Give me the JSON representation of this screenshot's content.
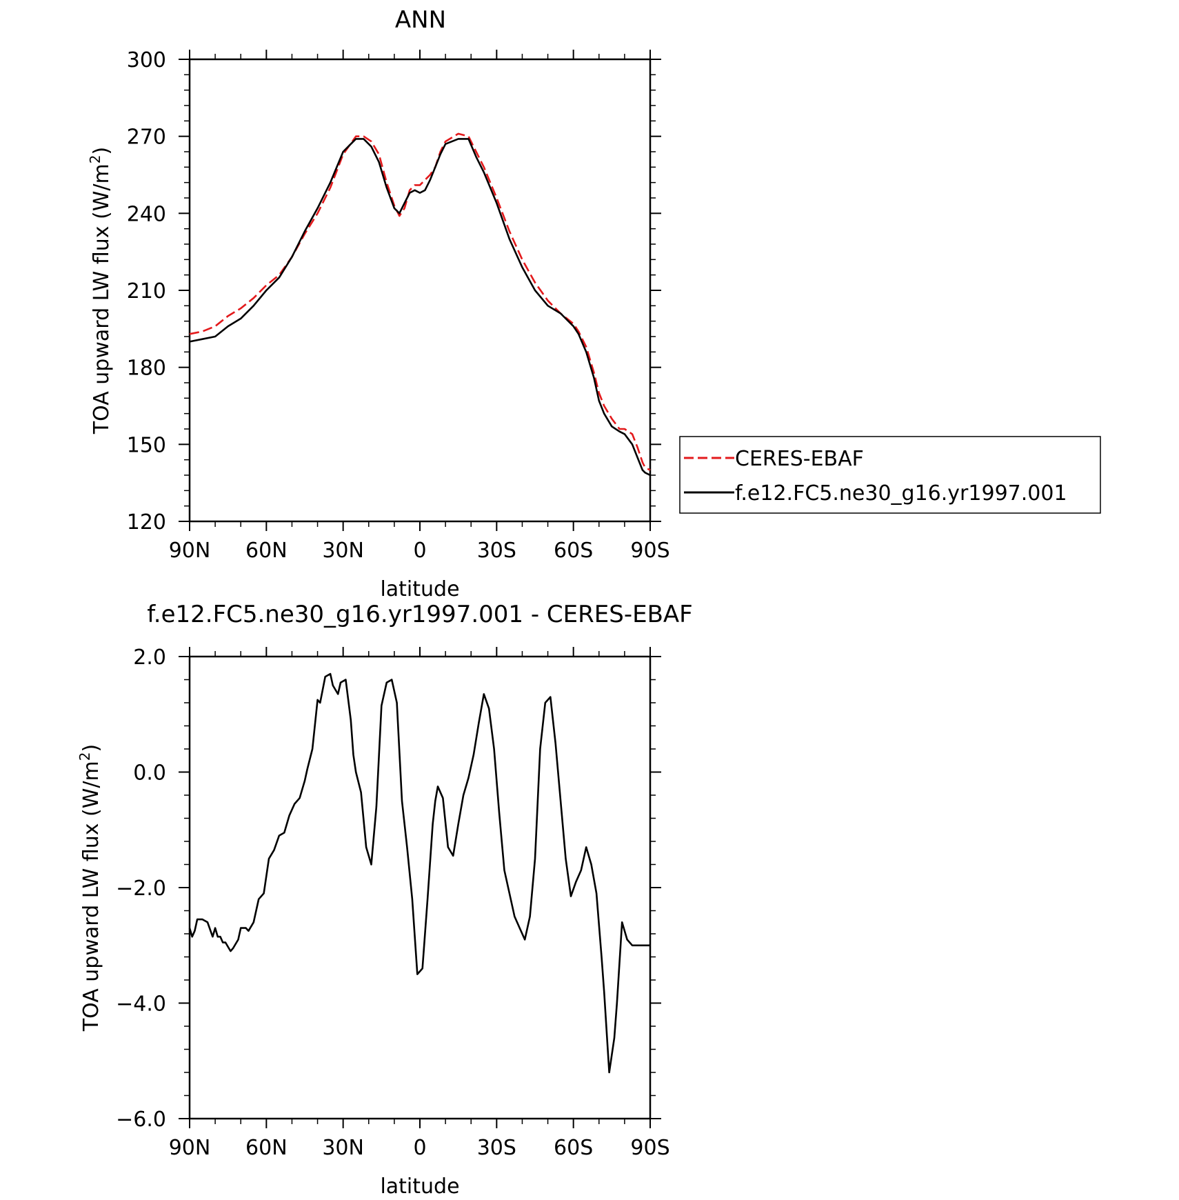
{
  "chart_data": [
    {
      "type": "line",
      "title": "ANN",
      "xlabel": "latitude",
      "ylabel": "TOA upward LW flux (W/m",
      "ylabel_superscript": "2",
      "ylabel_suffix": ")",
      "xlim": [
        90,
        -90
      ],
      "ylim": [
        120,
        300
      ],
      "x_ticks": [
        90,
        60,
        30,
        0,
        -30,
        -60,
        -90
      ],
      "x_tick_labels": [
        "90N",
        "60N",
        "30N",
        "0",
        "30S",
        "60S",
        "90S"
      ],
      "y_ticks": [
        120,
        150,
        180,
        210,
        240,
        270,
        300
      ],
      "y_tick_labels": [
        "120",
        "150",
        "180",
        "210",
        "240",
        "270",
        "300"
      ],
      "legend_position": "right",
      "series": [
        {
          "name": "CERES-EBAF",
          "color": "#e31a1c",
          "dash": "dashed",
          "x": [
            90,
            85,
            80,
            75,
            70,
            65,
            60,
            55,
            50,
            45,
            40,
            35,
            30,
            25,
            22,
            19,
            16,
            13,
            10,
            8,
            6,
            4,
            2,
            0,
            -2,
            -4,
            -6,
            -8,
            -10,
            -15,
            -19,
            -22,
            -25,
            -30,
            -35,
            -40,
            -45,
            -50,
            -55,
            -60,
            -62,
            -65,
            -68,
            -70,
            -72,
            -75,
            -78,
            -80,
            -83,
            -85,
            -87,
            -88,
            -90
          ],
          "values": [
            193,
            194,
            196,
            200,
            203,
            207,
            212,
            216,
            223,
            232,
            240,
            250,
            263,
            270,
            270,
            268,
            263,
            252,
            243,
            239,
            242,
            249,
            251,
            251,
            253,
            255,
            258,
            264,
            268,
            271,
            270,
            264,
            258,
            246,
            233,
            222,
            213,
            206,
            201,
            197,
            194,
            188,
            178,
            170,
            165,
            160,
            156,
            156,
            154,
            149,
            143,
            141,
            140
          ]
        },
        {
          "name": "f.e12.FC5.ne30_g16.yr1997.001",
          "color": "#000000",
          "dash": "solid",
          "x": [
            90,
            85,
            80,
            75,
            70,
            65,
            60,
            55,
            50,
            45,
            40,
            35,
            30,
            25,
            22,
            19,
            16,
            13,
            10,
            8,
            6,
            4,
            2,
            0,
            -2,
            -4,
            -6,
            -8,
            -10,
            -15,
            -19,
            -22,
            -25,
            -30,
            -35,
            -40,
            -45,
            -50,
            -55,
            -60,
            -62,
            -65,
            -68,
            -70,
            -72,
            -75,
            -78,
            -80,
            -83,
            -85,
            -87,
            -88,
            -90
          ],
          "values": [
            190,
            191,
            192,
            196,
            199,
            204,
            210,
            215,
            223,
            233,
            242,
            252,
            264,
            269,
            269,
            266,
            260,
            250,
            242,
            240,
            244,
            248,
            249,
            248,
            249,
            253,
            258,
            263,
            267,
            269,
            269,
            262,
            256,
            244,
            230,
            219,
            210,
            204,
            201,
            196,
            193,
            186,
            176,
            167,
            162,
            157,
            155,
            154,
            150,
            145,
            140,
            139,
            138
          ]
        }
      ]
    },
    {
      "type": "line",
      "title": "f.e12.FC5.ne30_g16.yr1997.001 - CERES-EBAF",
      "xlabel": "latitude",
      "ylabel": "TOA upward LW flux (W/m",
      "ylabel_superscript": "2",
      "ylabel_suffix": ")",
      "xlim": [
        90,
        -90
      ],
      "ylim": [
        -6,
        2
      ],
      "x_ticks": [
        90,
        60,
        30,
        0,
        -30,
        -60,
        -90
      ],
      "x_tick_labels": [
        "90N",
        "60N",
        "30N",
        "0",
        "30S",
        "60S",
        "90S"
      ],
      "y_ticks": [
        -6,
        -4,
        -2,
        0,
        2
      ],
      "y_tick_labels": [
        "−6.0",
        "−4.0",
        "−2.0",
        "0.0",
        "2.0"
      ],
      "series": [
        {
          "color": "#000000",
          "dash": "solid",
          "x": [
            90,
            89,
            88,
            87,
            85,
            83,
            81,
            80,
            79,
            78,
            77,
            76,
            74,
            73,
            71,
            70,
            68,
            67,
            65,
            63,
            61,
            59,
            57,
            55,
            53,
            51,
            49,
            47,
            45,
            44,
            42,
            40,
            39,
            37,
            35,
            34,
            32,
            31,
            29,
            27,
            26,
            25,
            23,
            21,
            19,
            17,
            15,
            13,
            11,
            9,
            7,
            5,
            3,
            1,
            -1,
            -3,
            -5,
            -6,
            -7,
            -9,
            -11,
            -13,
            -15,
            -17,
            -19,
            -21,
            -23,
            -25,
            -27,
            -29,
            -31,
            -33,
            -35,
            -37,
            -39,
            -41,
            -43,
            -45,
            -47,
            -49,
            -51,
            -53,
            -55,
            -57,
            -59,
            -61,
            -63,
            -65,
            -67,
            -69,
            -71,
            -72,
            -74,
            -76,
            -77,
            -79,
            -81,
            -83,
            -84,
            -85,
            -86,
            -87,
            -88,
            -89,
            -90
          ],
          "values": [
            -2.7,
            -2.85,
            -2.75,
            -2.55,
            -2.55,
            -2.6,
            -2.85,
            -2.7,
            -2.85,
            -2.85,
            -2.95,
            -2.95,
            -3.1,
            -3.05,
            -2.9,
            -2.7,
            -2.7,
            -2.75,
            -2.6,
            -2.2,
            -2.1,
            -1.5,
            -1.35,
            -1.1,
            -1.05,
            -0.75,
            -0.55,
            -0.45,
            -0.15,
            0.05,
            0.4,
            1.25,
            1.2,
            1.65,
            1.7,
            1.5,
            1.35,
            1.55,
            1.6,
            0.9,
            0.3,
            0.0,
            -0.35,
            -1.3,
            -1.6,
            -0.6,
            1.15,
            1.55,
            1.6,
            1.2,
            -0.5,
            -1.3,
            -2.2,
            -3.5,
            -3.4,
            -2.2,
            -0.9,
            -0.5,
            -0.25,
            -0.45,
            -1.3,
            -1.45,
            -0.9,
            -0.4,
            -0.1,
            0.3,
            0.85,
            1.35,
            1.1,
            0.4,
            -0.7,
            -1.7,
            -2.1,
            -2.5,
            -2.7,
            -2.9,
            -2.5,
            -1.5,
            0.4,
            1.2,
            1.3,
            0.5,
            -0.5,
            -1.5,
            -2.15,
            -1.9,
            -1.7,
            -1.3,
            -1.6,
            -2.1,
            -3.2,
            -3.8,
            -5.2,
            -4.6,
            -4.0,
            -2.6,
            -2.9,
            -3.0,
            -3.0,
            -3.0,
            -3.0,
            -3.0,
            -3.0,
            -3.0,
            -3.0
          ]
        }
      ]
    }
  ]
}
